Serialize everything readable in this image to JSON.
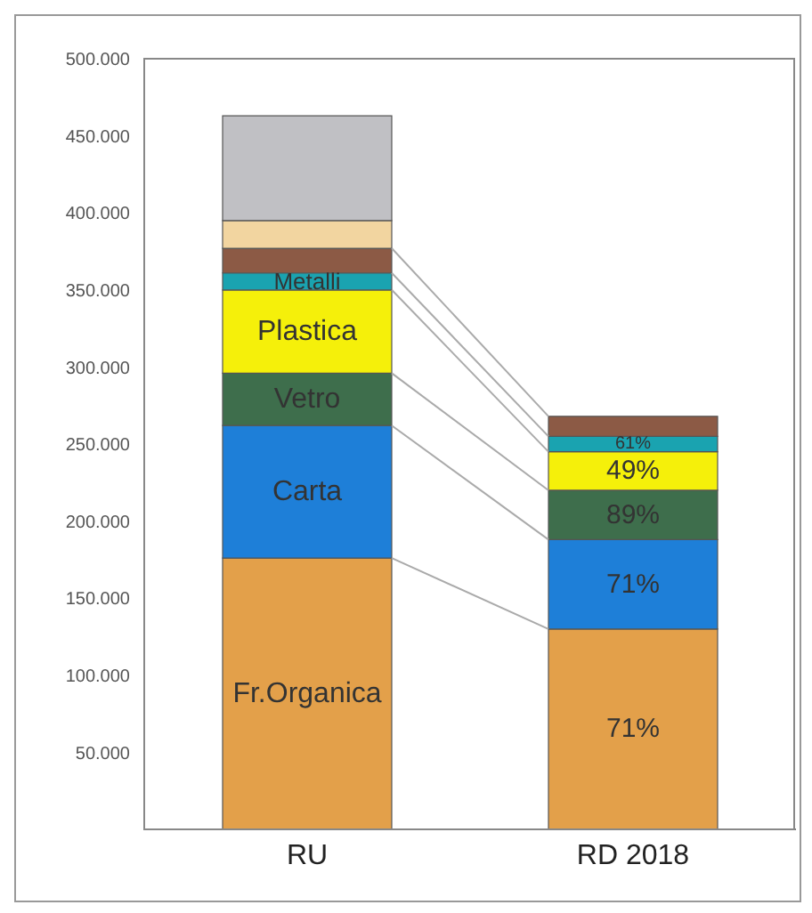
{
  "chart_data": {
    "type": "bar",
    "stacked": true,
    "categories": [
      "RU",
      "RD 2018"
    ],
    "series": [
      {
        "color": "#e3a04a",
        "values": [
          176000,
          130000
        ],
        "value_labels": [
          "Fr.Organica",
          null
        ]
      },
      {
        "color": "#1e7fd8",
        "values": [
          86000,
          58000
        ],
        "value_labels": [
          "Carta",
          null
        ]
      },
      {
        "color": "#3e6e4c",
        "values": [
          34000,
          32000
        ],
        "value_labels": [
          "Vetro",
          null
        ]
      },
      {
        "color": "#f5f00a",
        "values": [
          54000,
          25000
        ],
        "value_labels": [
          "Plastica",
          null
        ]
      },
      {
        "color": "#1aa3b0",
        "values": [
          11000,
          10000
        ],
        "value_labels": [
          "Metalli",
          null
        ]
      },
      {
        "color": "#8c5a45",
        "values": [
          16000,
          13000
        ]
      },
      {
        "color": "#f2d5a0",
        "values": [
          18000,
          null
        ]
      },
      {
        "color": "#c0c0c4",
        "values": [
          68000,
          null
        ]
      }
    ],
    "ylim": [
      0,
      500000
    ],
    "yticks": [
      {
        "value": 50000,
        "label": "50.000"
      },
      {
        "value": 100000,
        "label": "100.000"
      },
      {
        "value": 150000,
        "label": "150.000"
      },
      {
        "value": 200000,
        "label": "200.000"
      },
      {
        "value": 250000,
        "label": "250.000"
      },
      {
        "value": 300000,
        "label": "300.000"
      },
      {
        "value": 350000,
        "label": "350.000"
      },
      {
        "value": 400000,
        "label": "400.000"
      },
      {
        "value": 450000,
        "label": "450.000"
      },
      {
        "value": 500000,
        "label": "500.000"
      }
    ],
    "annotations": [
      "71%",
      "71%",
      "89%",
      "49%",
      "61%"
    ],
    "grid": false,
    "legend": false
  }
}
